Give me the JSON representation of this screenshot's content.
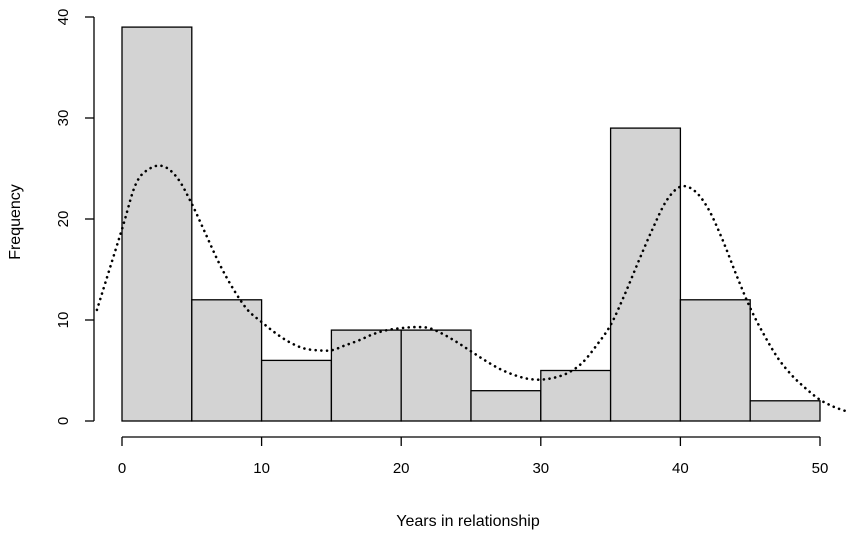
{
  "chart_data": {
    "type": "bar",
    "subtype": "histogram",
    "title": "",
    "xlabel": "Years in relationship",
    "ylabel": "Frequency",
    "bins": [
      {
        "from": 0,
        "to": 5,
        "value": 39
      },
      {
        "from": 5,
        "to": 10,
        "value": 12
      },
      {
        "from": 10,
        "to": 15,
        "value": 6
      },
      {
        "from": 15,
        "to": 20,
        "value": 9
      },
      {
        "from": 20,
        "to": 25,
        "value": 9
      },
      {
        "from": 25,
        "to": 30,
        "value": 3
      },
      {
        "from": 30,
        "to": 35,
        "value": 5
      },
      {
        "from": 35,
        "to": 40,
        "value": 29
      },
      {
        "from": 40,
        "to": 45,
        "value": 12
      },
      {
        "from": 45,
        "to": 50,
        "value": 2
      }
    ],
    "density_curve": {
      "style": "dotted",
      "x": [
        -1.8,
        0,
        1,
        2,
        3,
        4,
        5,
        6,
        7,
        8,
        9,
        10,
        11,
        12,
        13,
        14,
        15,
        16,
        17,
        18,
        19,
        20,
        21,
        22,
        23,
        24,
        25,
        26,
        27,
        28,
        29,
        30,
        31,
        32,
        33,
        34,
        35,
        36,
        37,
        38,
        39,
        40,
        41,
        42,
        43,
        44,
        45,
        46,
        47,
        48,
        49,
        50,
        51,
        51.8
      ],
      "y": [
        11,
        19,
        23.5,
        25,
        25.2,
        24,
        21.5,
        18.5,
        15.5,
        13,
        11,
        9.8,
        8.7,
        7.8,
        7.2,
        7,
        7,
        7.5,
        8,
        8.6,
        9,
        9.2,
        9.3,
        9.2,
        8.6,
        7.8,
        6.9,
        6,
        5.2,
        4.6,
        4.2,
        4.1,
        4.3,
        4.8,
        5.8,
        7.5,
        9.5,
        12.5,
        15.8,
        19,
        21.8,
        23.2,
        22.8,
        21,
        18,
        14.5,
        11.2,
        8.5,
        6.2,
        4.5,
        3.2,
        2.1,
        1.4,
        1.0
      ]
    },
    "xlim": [
      0,
      50
    ],
    "ylim": [
      0,
      40
    ],
    "x_ticks": [
      0,
      10,
      20,
      30,
      40,
      50
    ],
    "y_ticks": [
      0,
      10,
      20,
      30,
      40
    ],
    "bar_fill": "#d3d3d3",
    "bar_stroke": "#000000",
    "grid": false,
    "legend": "none"
  }
}
